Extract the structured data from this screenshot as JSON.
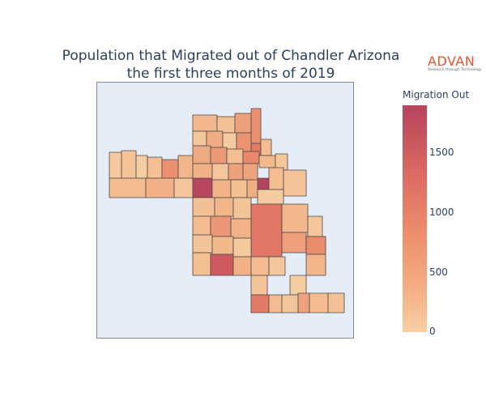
{
  "title": {
    "line1": "Population that Migrated out of Chandler Arizona",
    "line2": "the first three months of 2019"
  },
  "logo": {
    "brand": "ADVAN",
    "tagline": "Research through Technology",
    "color": "#e8552e"
  },
  "colorbar": {
    "title": "Migration Out",
    "ticks": [
      "1500",
      "1000",
      "500",
      "0"
    ],
    "range": [
      0,
      1900
    ],
    "colors": [
      "#f6cfa1",
      "#f3aa80",
      "#ec8c6b",
      "#da6a62",
      "#b6435c"
    ]
  },
  "map": {
    "background": "#e5ecf6",
    "max_highlight_color": "#b6435c"
  }
}
